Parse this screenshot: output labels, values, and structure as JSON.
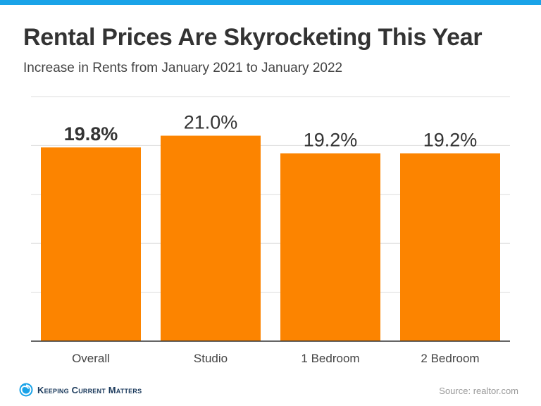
{
  "theme": {
    "top_bar_color": "#1aa3e8",
    "bar_color": "#fc8400",
    "grid_color": "#dddddd",
    "axis_color": "#333333",
    "label_color": "#333333"
  },
  "header": {
    "title": "Rental Prices Are Skyrocketing This Year",
    "subtitle": "Increase in Rents from January 2021 to January 2022"
  },
  "chart_data": {
    "type": "bar",
    "title": "Rental Prices Are Skyrocketing This Year",
    "subtitle": "Increase in Rents from January 2021 to January 2022",
    "categories": [
      "Overall",
      "Studio",
      "1 Bedroom",
      "2 Bedroom"
    ],
    "values": [
      19.8,
      21.0,
      19.2,
      19.2
    ],
    "value_labels": [
      "19.8%",
      "21.0%",
      "19.2%",
      "19.2%"
    ],
    "ylim": [
      0,
      25
    ],
    "grid": true,
    "xlabel": "",
    "ylabel": ""
  },
  "footer": {
    "logo_icon": "swirl-logo-icon",
    "logo_text": "Keeping Current Matters",
    "source": "Source: realtor.com"
  }
}
